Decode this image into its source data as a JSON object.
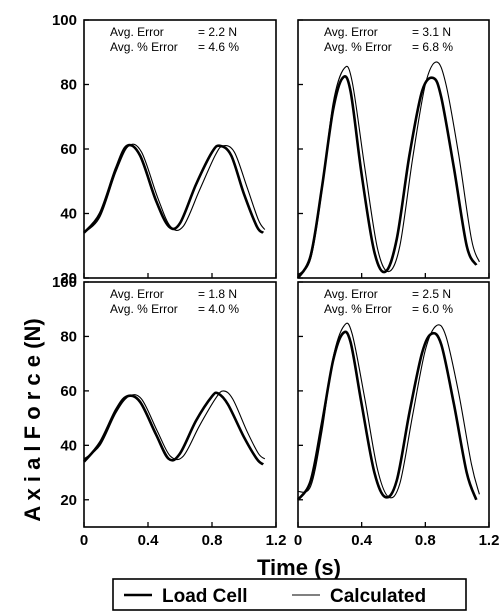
{
  "figure": {
    "ylabel": "A x i a l   F o r c e (N)",
    "xlabel": "Time (s)",
    "legend": [
      {
        "name": "Load Cell",
        "stroke_width": 2.6
      },
      {
        "name": "Calculated",
        "stroke_width": 1.1
      }
    ]
  },
  "chart_data": [
    {
      "type": "line",
      "panel": "top-left",
      "xlim": [
        0,
        1.2
      ],
      "ylim": [
        20,
        100
      ],
      "yticks": [
        "100",
        "80",
        "60",
        "40",
        "20"
      ],
      "xticks": [],
      "annotation": [
        {
          "label": "Avg. Error",
          "value": "= 2.2 N"
        },
        {
          "label": "Avg. % Error",
          "value": "= 4.6 %"
        }
      ],
      "series": [
        {
          "name": "Load Cell",
          "x": [
            0,
            0.1,
            0.2,
            0.27,
            0.35,
            0.45,
            0.53,
            0.6,
            0.7,
            0.8,
            0.85,
            0.92,
            1.0,
            1.08,
            1.12
          ],
          "y": [
            34,
            40,
            54,
            61,
            58,
            44,
            36,
            37,
            49,
            59,
            61,
            58,
            46,
            36,
            34
          ]
        },
        {
          "name": "Calculated",
          "x": [
            0,
            0.1,
            0.2,
            0.28,
            0.36,
            0.46,
            0.54,
            0.62,
            0.72,
            0.82,
            0.87,
            0.94,
            1.02,
            1.09,
            1.13
          ],
          "y": [
            34,
            39,
            53,
            61,
            59,
            45,
            36,
            36,
            47,
            58,
            61,
            59,
            48,
            38,
            35
          ]
        }
      ]
    },
    {
      "type": "line",
      "panel": "top-right",
      "xlim": [
        0,
        1.2
      ],
      "ylim": [
        20,
        100
      ],
      "yticks": [],
      "xticks": [],
      "annotation": [
        {
          "label": "Avg. Error",
          "value": "= 3.1 N"
        },
        {
          "label": "Avg. % Error",
          "value": "= 6.8 %"
        }
      ],
      "series": [
        {
          "name": "Load Cell",
          "x": [
            0,
            0.08,
            0.15,
            0.22,
            0.28,
            0.33,
            0.4,
            0.48,
            0.55,
            0.62,
            0.7,
            0.78,
            0.85,
            0.9,
            0.98,
            1.06,
            1.12
          ],
          "y": [
            20,
            27,
            48,
            72,
            82,
            78,
            52,
            28,
            22,
            32,
            58,
            78,
            82,
            76,
            54,
            30,
            24
          ]
        },
        {
          "name": "Calculated",
          "x": [
            0,
            0.08,
            0.15,
            0.22,
            0.29,
            0.34,
            0.42,
            0.5,
            0.57,
            0.64,
            0.72,
            0.8,
            0.87,
            0.93,
            1.01,
            1.09,
            1.14
          ],
          "y": [
            21,
            26,
            47,
            74,
            85,
            81,
            54,
            29,
            22,
            30,
            57,
            80,
            87,
            80,
            58,
            32,
            25
          ]
        }
      ]
    },
    {
      "type": "line",
      "panel": "bottom-left",
      "xlim": [
        0,
        1.2
      ],
      "ylim": [
        10,
        100
      ],
      "yticks": [
        "100",
        "80",
        "60",
        "40",
        "20"
      ],
      "xticks": [
        "0",
        "0.4",
        "0.8",
        "1.2"
      ],
      "annotation": [
        {
          "label": "Avg. Error",
          "value": "= 1.8 N"
        },
        {
          "label": "Avg. % Error",
          "value": "= 4.0 %"
        }
      ],
      "series": [
        {
          "name": "Load Cell",
          "x": [
            0,
            0.1,
            0.2,
            0.27,
            0.35,
            0.45,
            0.53,
            0.6,
            0.7,
            0.8,
            0.84,
            0.9,
            1.0,
            1.08,
            1.12
          ],
          "y": [
            34,
            41,
            53,
            58,
            56,
            44,
            35,
            37,
            49,
            58,
            59,
            55,
            43,
            35,
            33
          ]
        },
        {
          "name": "Calculated",
          "x": [
            0,
            0.1,
            0.2,
            0.28,
            0.36,
            0.46,
            0.54,
            0.62,
            0.72,
            0.82,
            0.87,
            0.93,
            1.02,
            1.09,
            1.13
          ],
          "y": [
            35,
            40,
            52,
            58,
            57,
            45,
            36,
            36,
            47,
            57,
            60,
            57,
            45,
            37,
            35
          ]
        }
      ]
    },
    {
      "type": "line",
      "panel": "bottom-right",
      "xlim": [
        0,
        1.2
      ],
      "ylim": [
        10,
        100
      ],
      "yticks": [],
      "xticks": [
        "0",
        "0.4",
        "0.8",
        "1.2"
      ],
      "annotation": [
        {
          "label": "Avg. Error",
          "value": "= 2.5 N"
        },
        {
          "label": "Avg. % Error",
          "value": "= 6.0 %"
        }
      ],
      "series": [
        {
          "name": "Load Cell",
          "x": [
            0,
            0.08,
            0.15,
            0.22,
            0.28,
            0.33,
            0.4,
            0.48,
            0.55,
            0.62,
            0.7,
            0.78,
            0.84,
            0.9,
            0.98,
            1.06,
            1.12
          ],
          "y": [
            20,
            27,
            48,
            71,
            81,
            78,
            55,
            30,
            21,
            27,
            52,
            74,
            81,
            77,
            55,
            30,
            20
          ]
        },
        {
          "name": "Calculated",
          "x": [
            0,
            0.08,
            0.15,
            0.22,
            0.29,
            0.34,
            0.42,
            0.5,
            0.57,
            0.64,
            0.72,
            0.8,
            0.87,
            0.93,
            1.01,
            1.09,
            1.14
          ],
          "y": [
            23,
            25,
            45,
            72,
            84,
            81,
            57,
            31,
            21,
            26,
            51,
            75,
            84,
            80,
            59,
            33,
            22
          ]
        }
      ]
    }
  ]
}
